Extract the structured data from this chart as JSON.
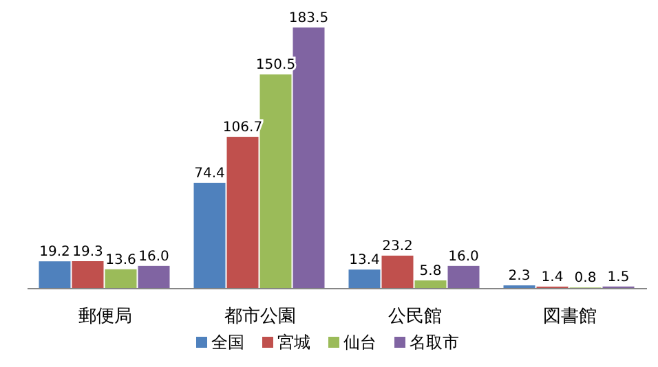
{
  "chart_data": {
    "type": "bar",
    "categories": [
      "郵便局",
      "都市公園",
      "公民館",
      "図書館"
    ],
    "series": [
      {
        "name": "全国",
        "color": "#4f81bd",
        "values": [
          19.2,
          74.4,
          13.4,
          2.3
        ],
        "value_labels": [
          "19.2",
          "74.4",
          "13.4",
          "2.3"
        ]
      },
      {
        "name": "宮城",
        "color": "#c0504d",
        "values": [
          19.3,
          106.7,
          23.2,
          1.4
        ],
        "value_labels": [
          "19.3",
          "106.7",
          "23.2",
          "1.4"
        ]
      },
      {
        "name": "仙台",
        "color": "#9bbb59",
        "values": [
          13.6,
          150.5,
          5.8,
          0.8
        ],
        "value_labels": [
          "13.6",
          "150.5",
          "5.8",
          "0.8"
        ]
      },
      {
        "name": "名取市",
        "color": "#8064a2",
        "values": [
          16.0,
          183.5,
          16.0,
          1.5
        ],
        "value_labels": [
          "16.0",
          "183.5",
          "16.0",
          "1.5"
        ]
      }
    ],
    "legend": "bottom",
    "tick_labels": "x"
  }
}
